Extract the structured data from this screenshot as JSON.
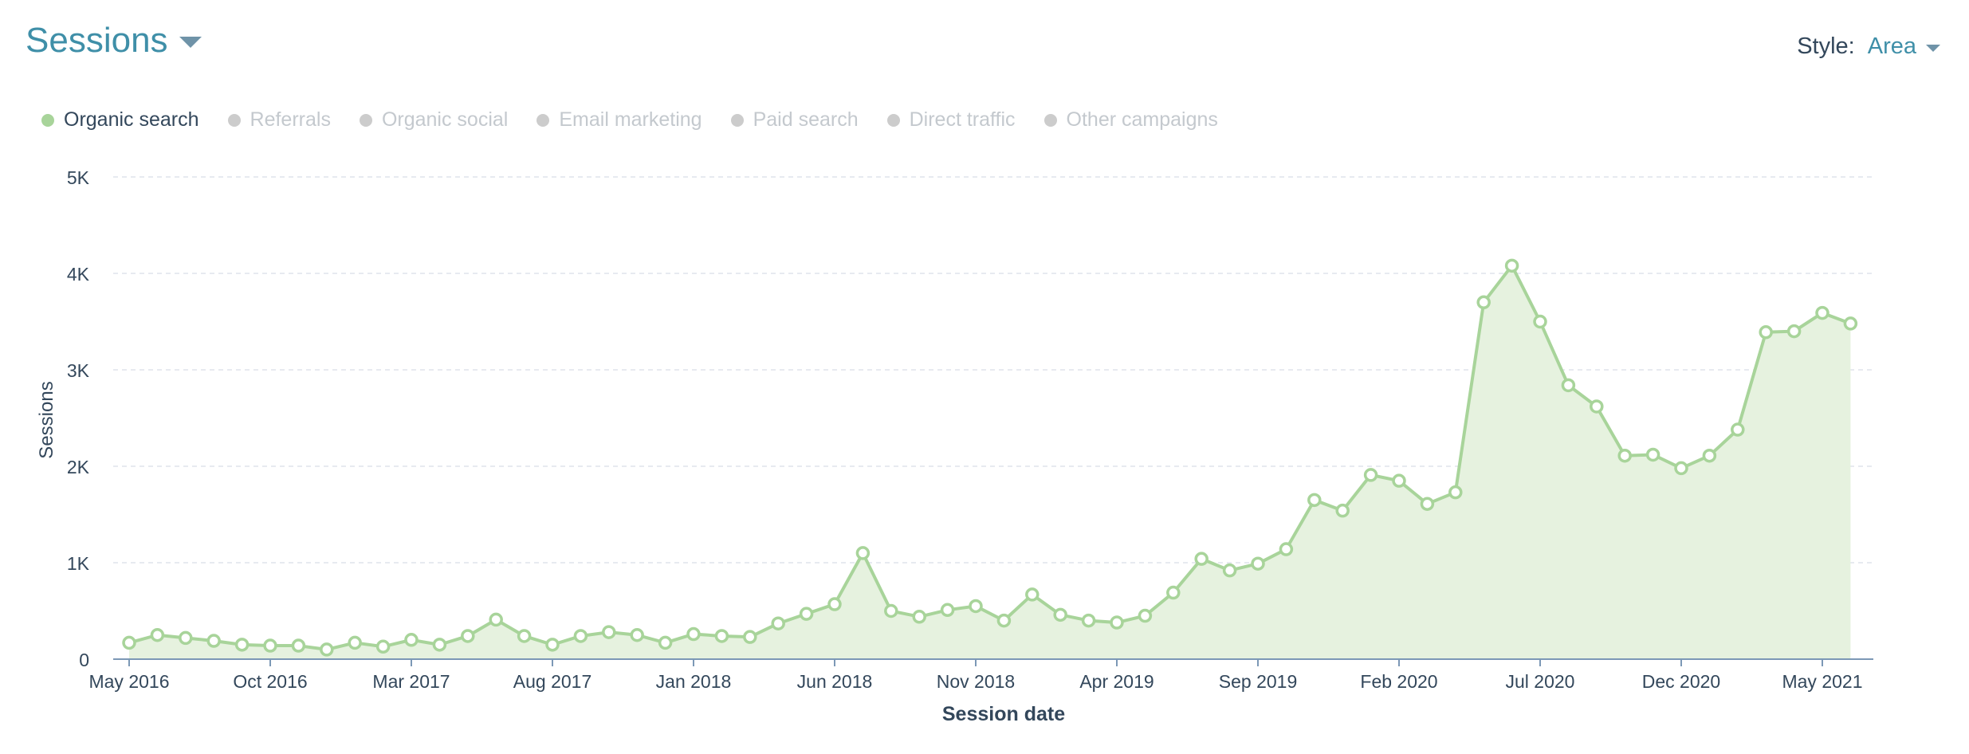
{
  "header": {
    "title": "Sessions",
    "style_label": "Style:",
    "style_value": "Area"
  },
  "legend": {
    "items": [
      {
        "label": "Organic search",
        "active": true
      },
      {
        "label": "Referrals",
        "active": false
      },
      {
        "label": "Organic social",
        "active": false
      },
      {
        "label": "Email marketing",
        "active": false
      },
      {
        "label": "Paid search",
        "active": false
      },
      {
        "label": "Direct traffic",
        "active": false
      },
      {
        "label": "Other campaigns",
        "active": false
      }
    ]
  },
  "colors": {
    "active_series": "#a8d49a",
    "area_fill": "#e6f2df",
    "inactive": "#cccccc",
    "active_text": "#33475b",
    "inactive_text": "#c4c9ce",
    "axis_text": "#33475b",
    "grid": "#dfe3eb",
    "baseline": "#7c98b6"
  },
  "chart_data": {
    "type": "area",
    "xlabel": "Session date",
    "ylabel": "Sessions",
    "ylim": [
      0,
      5000
    ],
    "y_ticks": [
      {
        "value": 0,
        "label": "0"
      },
      {
        "value": 1000,
        "label": "1K"
      },
      {
        "value": 2000,
        "label": "2K"
      },
      {
        "value": 3000,
        "label": "3K"
      },
      {
        "value": 4000,
        "label": "4K"
      },
      {
        "value": 5000,
        "label": "5K"
      }
    ],
    "x_tick_labels": [
      "May 2016",
      "Oct 2016",
      "Mar 2017",
      "Aug 2017",
      "Jan 2018",
      "Jun 2018",
      "Nov 2018",
      "Apr 2019",
      "Sep 2019",
      "Feb 2020",
      "Jul 2020",
      "Dec 2020",
      "May 2021"
    ],
    "grid": true,
    "legend_position": "top-left",
    "x": [
      "May 2016",
      "Jun 2016",
      "Jul 2016",
      "Aug 2016",
      "Sep 2016",
      "Oct 2016",
      "Nov 2016",
      "Dec 2016",
      "Jan 2017",
      "Feb 2017",
      "Mar 2017",
      "Apr 2017",
      "May 2017",
      "Jun 2017",
      "Jul 2017",
      "Aug 2017",
      "Sep 2017",
      "Oct 2017",
      "Nov 2017",
      "Dec 2017",
      "Jan 2018",
      "Feb 2018",
      "Mar 2018",
      "Apr 2018",
      "May 2018",
      "Jun 2018",
      "Jul 2018",
      "Aug 2018",
      "Sep 2018",
      "Oct 2018",
      "Nov 2018",
      "Dec 2018",
      "Jan 2019",
      "Feb 2019",
      "Mar 2019",
      "Apr 2019",
      "May 2019",
      "Jun 2019",
      "Jul 2019",
      "Aug 2019",
      "Sep 2019",
      "Oct 2019",
      "Nov 2019",
      "Dec 2019",
      "Jan 2020",
      "Feb 2020",
      "Mar 2020",
      "Apr 2020",
      "May 2020",
      "Jun 2020",
      "Jul 2020",
      "Aug 2020",
      "Sep 2020",
      "Oct 2020",
      "Nov 2020",
      "Dec 2020",
      "Jan 2021",
      "Feb 2021",
      "Mar 2021",
      "Apr 2021",
      "May 2021",
      "Jun 2021"
    ],
    "series": [
      {
        "name": "Organic search",
        "values": [
          170,
          250,
          220,
          190,
          150,
          140,
          140,
          100,
          170,
          130,
          200,
          150,
          240,
          410,
          240,
          150,
          240,
          280,
          250,
          170,
          260,
          240,
          230,
          370,
          470,
          570,
          1100,
          500,
          440,
          510,
          550,
          400,
          670,
          460,
          400,
          380,
          450,
          690,
          1040,
          920,
          990,
          1140,
          1650,
          1540,
          1910,
          1850,
          1610,
          1730,
          3700,
          4080,
          3500,
          2840,
          2620,
          2110,
          2120,
          1980,
          2110,
          2380,
          3390,
          3400,
          3590,
          3480
        ]
      }
    ]
  }
}
